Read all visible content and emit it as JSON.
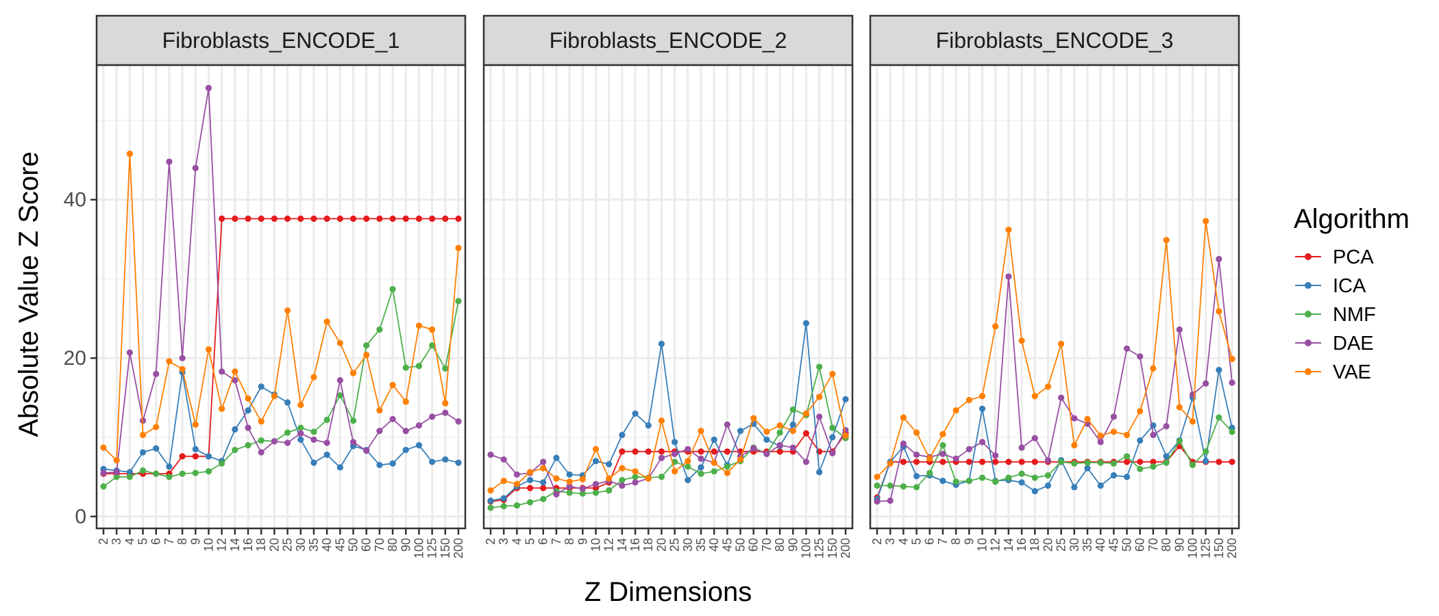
{
  "chart_data": {
    "type": "line",
    "xlabel": "Z Dimensions",
    "ylabel": "Absolute Value Z Score",
    "ylim": [
      -1.5,
      57
    ],
    "yticks": [
      0,
      20,
      40
    ],
    "grid": true,
    "legend_title": "Algorithm",
    "legend_position": "right",
    "categories": [
      "2",
      "3",
      "4",
      "5",
      "6",
      "7",
      "8",
      "9",
      "10",
      "12",
      "14",
      "16",
      "18",
      "20",
      "25",
      "30",
      "35",
      "40",
      "45",
      "50",
      "60",
      "70",
      "80",
      "90",
      "100",
      "125",
      "150",
      "200"
    ],
    "series_names": [
      "PCA",
      "ICA",
      "NMF",
      "DAE",
      "VAE"
    ],
    "colors": {
      "PCA": "#E41A1C",
      "ICA": "#377EB8",
      "NMF": "#4DAF4A",
      "DAE": "#984EA3",
      "VAE": "#FF7F00"
    },
    "panels": [
      {
        "title": "Fibroblasts_ENCODE_1",
        "series": [
          {
            "name": "PCA",
            "values": [
              5.4,
              5.4,
              5.4,
              5.4,
              5.4,
              5.4,
              7.6,
              7.6,
              7.6,
              37.6,
              37.6,
              37.6,
              37.6,
              37.6,
              37.6,
              37.6,
              37.6,
              37.6,
              37.6,
              37.6,
              37.6,
              37.6,
              37.6,
              37.6,
              37.6,
              37.6,
              37.6,
              37.6
            ]
          },
          {
            "name": "ICA",
            "values": [
              6.0,
              5.8,
              5.6,
              8.1,
              8.6,
              6.3,
              18.2,
              8.5,
              7.6,
              7.0,
              11.0,
              13.4,
              16.4,
              15.4,
              14.4,
              9.7,
              6.8,
              7.8,
              6.2,
              8.9,
              8.4,
              6.5,
              6.7,
              8.4,
              9.0,
              6.9,
              7.2,
              6.8
            ]
          },
          {
            "name": "NMF",
            "values": [
              3.8,
              5.0,
              5.0,
              5.8,
              5.4,
              5.0,
              5.4,
              5.5,
              5.7,
              6.7,
              8.4,
              9.0,
              9.6,
              9.5,
              10.6,
              11.2,
              10.7,
              12.2,
              15.3,
              12.1,
              21.6,
              23.6,
              28.7,
              18.8,
              19.0,
              21.6,
              18.7,
              27.2
            ]
          },
          {
            "name": "DAE",
            "values": [
              5.5,
              5.6,
              20.7,
              12.1,
              18.0,
              44.8,
              20.0,
              44.0,
              54.1,
              18.3,
              17.2,
              11.2,
              8.1,
              9.5,
              9.3,
              10.5,
              9.7,
              9.3,
              17.2,
              9.4,
              8.3,
              10.8,
              12.3,
              10.8,
              11.5,
              12.6,
              13.1,
              12.0
            ]
          },
          {
            "name": "VAE",
            "values": [
              8.7,
              7.1,
              45.8,
              10.3,
              11.3,
              19.6,
              18.6,
              11.6,
              21.1,
              13.6,
              18.3,
              14.9,
              12.0,
              15.2,
              26.0,
              14.1,
              17.6,
              24.6,
              21.9,
              18.1,
              20.4,
              13.4,
              16.6,
              14.5,
              24.1,
              23.6,
              14.3,
              33.9
            ]
          }
        ]
      },
      {
        "title": "Fibroblasts_ENCODE_2",
        "series": [
          {
            "name": "PCA",
            "values": [
              1.9,
              2.1,
              3.6,
              3.6,
              3.6,
              3.6,
              3.6,
              3.6,
              3.6,
              4.3,
              8.2,
              8.2,
              8.2,
              8.2,
              8.2,
              8.2,
              8.2,
              8.2,
              8.2,
              8.2,
              8.2,
              8.2,
              8.2,
              8.2,
              10.5,
              8.2,
              8.2,
              10.5
            ]
          },
          {
            "name": "ICA",
            "values": [
              2.0,
              2.3,
              3.8,
              4.6,
              4.3,
              7.4,
              5.3,
              5.2,
              7.0,
              6.6,
              10.3,
              13.0,
              11.5,
              21.8,
              9.4,
              4.6,
              6.2,
              9.7,
              6.5,
              10.8,
              11.7,
              9.7,
              8.9,
              11.6,
              24.4,
              5.6,
              10.0,
              14.8
            ]
          },
          {
            "name": "NMF",
            "values": [
              1.1,
              1.3,
              1.4,
              1.8,
              2.2,
              3.2,
              3.0,
              2.9,
              3.0,
              3.3,
              4.6,
              5.0,
              4.9,
              5.0,
              6.9,
              6.3,
              5.4,
              5.7,
              6.3,
              7.0,
              8.7,
              7.9,
              10.6,
              13.5,
              12.8,
              18.9,
              11.2,
              9.9
            ]
          },
          {
            "name": "DAE",
            "values": [
              7.8,
              7.2,
              5.3,
              5.5,
              6.9,
              2.8,
              3.8,
              3.5,
              4.1,
              4.5,
              3.9,
              4.3,
              4.8,
              7.4,
              7.9,
              8.5,
              7.3,
              6.8,
              11.6,
              7.6,
              8.6,
              7.9,
              9.0,
              8.7,
              6.9,
              12.6,
              8.0,
              10.9
            ]
          },
          {
            "name": "VAE",
            "values": [
              3.3,
              4.5,
              4.1,
              5.6,
              6.1,
              4.8,
              4.4,
              4.7,
              8.5,
              4.8,
              6.1,
              5.7,
              4.8,
              12.1,
              5.7,
              7.0,
              10.8,
              6.8,
              5.5,
              7.2,
              12.4,
              10.7,
              11.5,
              10.8,
              13.0,
              15.1,
              18.0,
              10.2
            ]
          }
        ]
      },
      {
        "title": "Fibroblasts_ENCODE_3",
        "series": [
          {
            "name": "PCA",
            "values": [
              2.4,
              6.9,
              6.9,
              6.9,
              6.9,
              6.9,
              6.9,
              6.9,
              6.9,
              6.9,
              6.9,
              6.9,
              6.9,
              6.9,
              6.9,
              6.9,
              6.9,
              6.9,
              6.9,
              6.9,
              6.9,
              6.9,
              6.9,
              8.9,
              6.9,
              6.9,
              6.9,
              6.9
            ]
          },
          {
            "name": "ICA",
            "values": [
              2.2,
              6.9,
              8.8,
              5.1,
              5.2,
              4.5,
              4.0,
              4.5,
              13.6,
              4.5,
              4.6,
              4.3,
              3.2,
              3.9,
              7.1,
              3.7,
              6.1,
              3.9,
              5.2,
              5.0,
              9.6,
              11.5,
              7.6,
              9.6,
              15.0,
              7.0,
              18.5,
              11.2
            ]
          },
          {
            "name": "NMF",
            "values": [
              3.9,
              3.9,
              3.8,
              3.7,
              5.5,
              9.0,
              4.4,
              4.5,
              4.9,
              4.4,
              4.9,
              5.4,
              4.9,
              5.2,
              6.9,
              6.7,
              6.8,
              6.8,
              6.7,
              7.6,
              6.0,
              6.3,
              6.8,
              9.5,
              6.5,
              8.2,
              12.5,
              10.7
            ]
          },
          {
            "name": "DAE",
            "values": [
              1.9,
              2.0,
              9.2,
              7.8,
              7.5,
              7.9,
              7.3,
              8.5,
              9.4,
              7.7,
              30.3,
              8.7,
              9.9,
              7.1,
              15.0,
              12.4,
              11.7,
              9.4,
              12.6,
              21.2,
              20.2,
              10.3,
              11.4,
              23.6,
              15.4,
              16.8,
              32.5,
              16.9
            ]
          },
          {
            "name": "VAE",
            "values": [
              5.0,
              6.7,
              12.5,
              10.6,
              7.3,
              10.4,
              13.4,
              14.7,
              15.2,
              24.0,
              36.2,
              22.2,
              15.2,
              16.4,
              21.8,
              9.0,
              12.3,
              10.2,
              10.7,
              10.3,
              13.3,
              18.7,
              34.9,
              13.8,
              12.0,
              37.3,
              25.9,
              19.9
            ]
          }
        ]
      }
    ]
  }
}
